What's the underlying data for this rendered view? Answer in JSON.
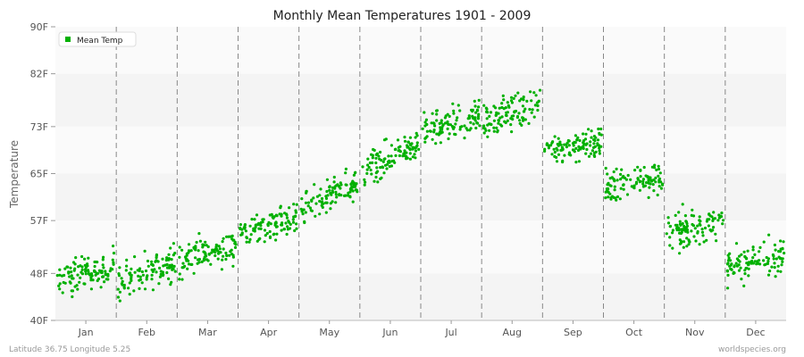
{
  "chart_data": {
    "type": "scatter",
    "title": "Monthly Mean Temperatures 1901 - 2009",
    "ylabel": "Temperature",
    "xlabel": "",
    "ylim": [
      40,
      90
    ],
    "yticks": [
      {
        "value": 40,
        "label": "40F"
      },
      {
        "value": 48,
        "label": "48F"
      },
      {
        "value": 57,
        "label": "57F"
      },
      {
        "value": 65,
        "label": "65F"
      },
      {
        "value": 73,
        "label": "73F"
      },
      {
        "value": 82,
        "label": "82F"
      },
      {
        "value": 90,
        "label": "90F"
      }
    ],
    "categories": [
      "Jan",
      "Feb",
      "Mar",
      "Apr",
      "May",
      "Jun",
      "Jul",
      "Aug",
      "Sep",
      "Oct",
      "Nov",
      "Dec"
    ],
    "grid": "horizontal bands, dashed vertical month separators",
    "legend": {
      "position": "top-left"
    },
    "series": [
      {
        "name": "Mean Temp",
        "color": "#00b000",
        "months": [
          {
            "month": "Jan",
            "start": 46.5,
            "end": 49.5,
            "spread": 2.0,
            "min": 44.0,
            "max": 53.5
          },
          {
            "month": "Feb",
            "start": 46.5,
            "end": 50.0,
            "spread": 2.2,
            "min": 43.0,
            "max": 57.5
          },
          {
            "month": "Mar",
            "start": 50.0,
            "end": 53.0,
            "spread": 2.0,
            "min": 46.5,
            "max": 58.5
          },
          {
            "month": "Apr",
            "start": 55.0,
            "end": 57.5,
            "spread": 1.9,
            "min": 51.0,
            "max": 61.5
          },
          {
            "month": "May",
            "start": 58.5,
            "end": 63.5,
            "spread": 2.0,
            "min": 55.0,
            "max": 66.0
          },
          {
            "month": "Jun",
            "start": 65.0,
            "end": 70.5,
            "spread": 2.0,
            "min": 60.0,
            "max": 73.5
          },
          {
            "month": "Jul",
            "start": 72.0,
            "end": 75.0,
            "spread": 1.9,
            "min": 67.5,
            "max": 80.5
          },
          {
            "month": "Aug",
            "start": 74.0,
            "end": 77.0,
            "spread": 2.0,
            "min": 70.5,
            "max": 82.5
          },
          {
            "month": "Sep",
            "start": 69.0,
            "end": 70.5,
            "spread": 2.0,
            "min": 66.0,
            "max": 76.0
          },
          {
            "month": "Oct",
            "start": 62.5,
            "end": 64.5,
            "spread": 2.1,
            "min": 58.0,
            "max": 69.5
          },
          {
            "month": "Nov",
            "start": 55.0,
            "end": 56.5,
            "spread": 2.1,
            "min": 50.0,
            "max": 60.5
          },
          {
            "month": "Dec",
            "start": 49.0,
            "end": 51.0,
            "spread": 2.1,
            "min": 44.0,
            "max": 58.0
          }
        ]
      }
    ]
  },
  "footer": {
    "left": "Latitude 36.75 Longitude 5.25",
    "right": "worldspecies.org"
  }
}
